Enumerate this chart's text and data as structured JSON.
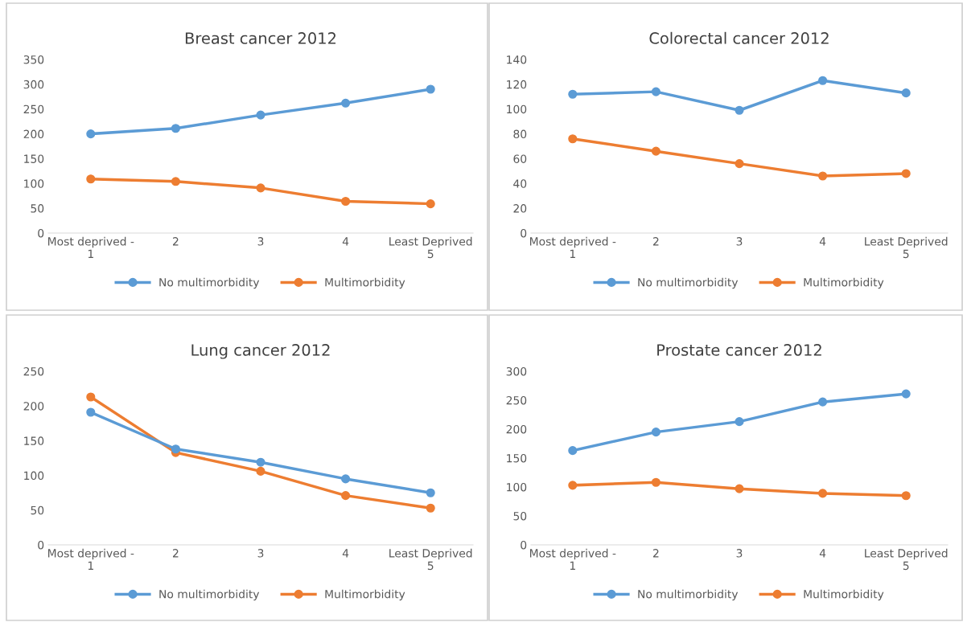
{
  "chart_data": [
    {
      "type": "line",
      "title": "Breast cancer 2012",
      "categories": [
        "Most deprived -\n1",
        "2",
        "3",
        "4",
        "Least Deprived\n5"
      ],
      "ylim": [
        0,
        350
      ],
      "yticks": [
        0,
        50,
        100,
        150,
        200,
        250,
        300,
        350
      ],
      "grid": false,
      "legend": "bottom",
      "marker": "circle",
      "line_style": "solid",
      "series": [
        {
          "name": "No multimorbidity",
          "color": "#5b9bd5",
          "values": [
            200,
            211,
            238,
            262,
            290
          ]
        },
        {
          "name": "Multimorbidity",
          "color": "#ed7d31",
          "values": [
            109,
            104,
            91,
            64,
            59
          ]
        }
      ]
    },
    {
      "type": "line",
      "title": "Colorectal cancer 2012",
      "categories": [
        "Most deprived -\n1",
        "2",
        "3",
        "4",
        "Least Deprived\n5"
      ],
      "ylim": [
        0,
        140
      ],
      "yticks": [
        0,
        20,
        40,
        60,
        80,
        100,
        120,
        140
      ],
      "grid": false,
      "legend": "bottom",
      "marker": "circle",
      "line_style": "solid",
      "series": [
        {
          "name": "No multimorbidity",
          "color": "#5b9bd5",
          "values": [
            112,
            114,
            99,
            123,
            113
          ]
        },
        {
          "name": "Multimorbidity",
          "color": "#ed7d31",
          "values": [
            76,
            66,
            56,
            46,
            48
          ]
        }
      ]
    },
    {
      "type": "line",
      "title": "Lung cancer 2012",
      "categories": [
        "Most deprived -\n1",
        "2",
        "3",
        "4",
        "Least Deprived\n5"
      ],
      "ylim": [
        0,
        250
      ],
      "yticks": [
        0,
        50,
        100,
        150,
        200,
        250
      ],
      "grid": false,
      "legend": "bottom",
      "marker": "circle",
      "line_style": "solid",
      "series": [
        {
          "name": "No multimorbidity",
          "color": "#5b9bd5",
          "values": [
            191,
            138,
            119,
            95,
            75
          ]
        },
        {
          "name": "Multimorbidity",
          "color": "#ed7d31",
          "values": [
            213,
            133,
            106,
            71,
            53
          ]
        }
      ]
    },
    {
      "type": "line",
      "title": "Prostate cancer 2012",
      "categories": [
        "Most deprived -\n1",
        "2",
        "3",
        "4",
        "Least Deprived\n5"
      ],
      "ylim": [
        0,
        300
      ],
      "yticks": [
        0,
        50,
        100,
        150,
        200,
        250,
        300
      ],
      "grid": false,
      "legend": "bottom",
      "marker": "circle",
      "line_style": "solid",
      "series": [
        {
          "name": "No multimorbidity",
          "color": "#5b9bd5",
          "values": [
            163,
            195,
            213,
            247,
            261
          ]
        },
        {
          "name": "Multimorbidity",
          "color": "#ed7d31",
          "values": [
            103,
            108,
            97,
            89,
            85
          ]
        }
      ]
    }
  ]
}
